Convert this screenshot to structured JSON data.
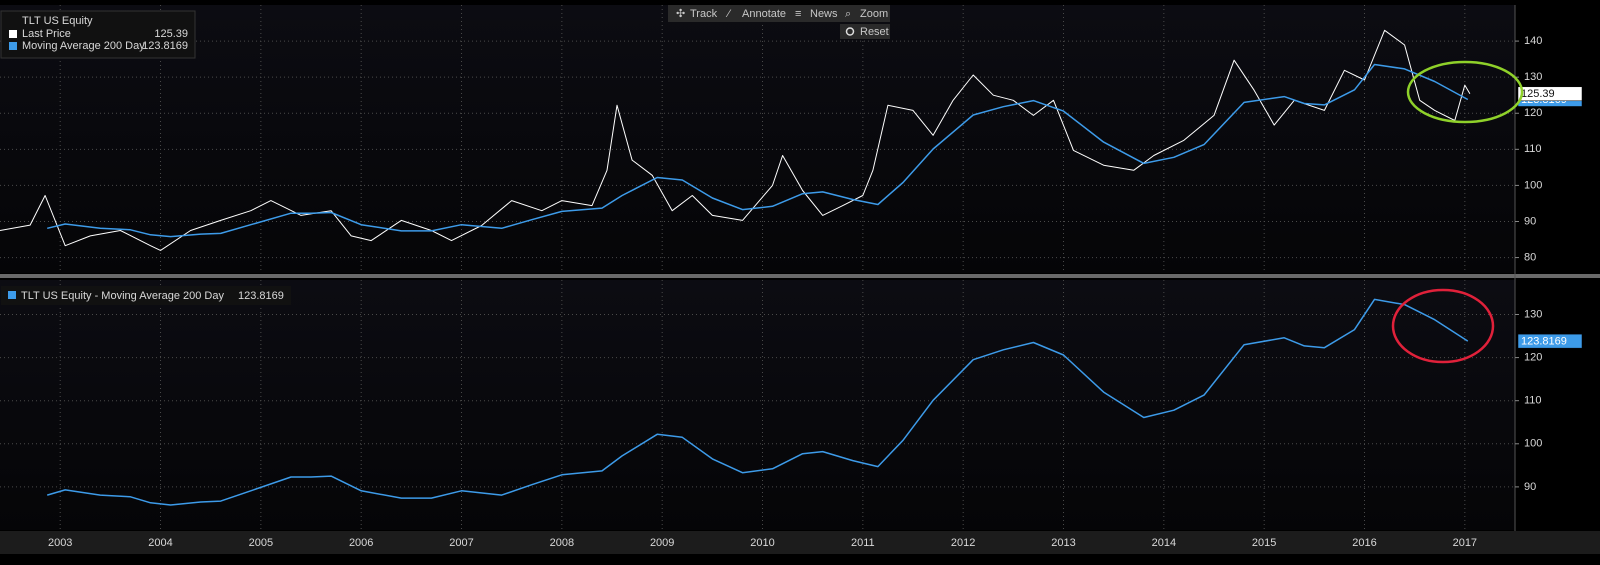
{
  "toolbar": {
    "buttons": [
      "Track",
      "Annotate",
      "News",
      "Zoom"
    ],
    "reset": "Reset"
  },
  "chart_data": [
    {
      "type": "line",
      "title": "TLT US Equity",
      "ylim": [
        76,
        150
      ],
      "yticks": [
        80,
        90,
        100,
        110,
        120,
        130,
        140
      ],
      "grid": true,
      "legend": "top-left",
      "series": [
        {
          "name": "Last Price",
          "color": "#ffffff",
          "x": [
            2002.4,
            2002.7,
            2002.85,
            2003.05,
            2003.3,
            2003.6,
            2003.9,
            2004.0,
            2004.3,
            2004.6,
            2004.9,
            2005.1,
            2005.4,
            2005.7,
            2005.9,
            2006.1,
            2006.4,
            2006.7,
            2006.9,
            2007.2,
            2007.5,
            2007.8,
            2008.0,
            2008.3,
            2008.45,
            2008.55,
            2008.7,
            2008.9,
            2009.1,
            2009.3,
            2009.5,
            2009.8,
            2010.1,
            2010.2,
            2010.4,
            2010.6,
            2010.8,
            2011.0,
            2011.1,
            2011.25,
            2011.5,
            2011.7,
            2011.9,
            2012.1,
            2012.3,
            2012.5,
            2012.7,
            2012.9,
            2013.1,
            2013.4,
            2013.7,
            2013.9,
            2014.2,
            2014.5,
            2014.7,
            2014.9,
            2015.1,
            2015.3,
            2015.6,
            2015.8,
            2016.0,
            2016.2,
            2016.4,
            2016.55,
            2016.7,
            2016.9,
            2017.0,
            2017.05
          ],
          "values": [
            87.5,
            89,
            97.2,
            83.3,
            86,
            87.5,
            83.3,
            82,
            87.5,
            90.3,
            93,
            95.8,
            91.7,
            93,
            86,
            84.7,
            90.3,
            87.5,
            84.7,
            88.9,
            95.8,
            93,
            95.8,
            94.4,
            104.2,
            122.2,
            107,
            102.8,
            93,
            97.2,
            91.7,
            90.3,
            100,
            108.3,
            98.6,
            91.7,
            94.4,
            97.2,
            104.2,
            122.2,
            120.8,
            113.9,
            123.6,
            130.6,
            125,
            123.6,
            119.4,
            123.6,
            109.7,
            105.6,
            104.2,
            108.3,
            112.5,
            119.4,
            134.7,
            126.4,
            116.7,
            123.6,
            120.8,
            131.9,
            129.2,
            143,
            138.9,
            123.6,
            120.8,
            118,
            127.8,
            125.39
          ]
        },
        {
          "name": "Moving Average 200 Day",
          "color": "#3d9be9",
          "x": [
            2002.87,
            2003.05,
            2003.4,
            2003.7,
            2003.9,
            2004.1,
            2004.4,
            2004.6,
            2004.9,
            2005.3,
            2005.5,
            2005.7,
            2006.0,
            2006.4,
            2006.7,
            2007.0,
            2007.4,
            2007.7,
            2008.0,
            2008.4,
            2008.6,
            2008.95,
            2009.2,
            2009.5,
            2009.8,
            2010.1,
            2010.4,
            2010.6,
            2010.9,
            2011.15,
            2011.4,
            2011.7,
            2012.1,
            2012.4,
            2012.7,
            2013.0,
            2013.4,
            2013.8,
            2014.1,
            2014.4,
            2014.8,
            2015.2,
            2015.4,
            2015.6,
            2015.9,
            2016.1,
            2016.4,
            2016.7,
            2017.03
          ],
          "values": [
            88.1,
            89.3,
            88.1,
            87.7,
            86.3,
            85.8,
            86.5,
            86.7,
            89.1,
            92.3,
            92.3,
            92.5,
            89.1,
            87.4,
            87.4,
            89.1,
            88.1,
            90.5,
            92.8,
            93.7,
            97.2,
            102.2,
            101.5,
            96.5,
            93.3,
            94.2,
            97.7,
            98.2,
            96.1,
            94.7,
            100.8,
            110.1,
            119.5,
            121.8,
            123.5,
            120.6,
            112,
            106.1,
            107.8,
            111.3,
            123,
            124.6,
            122.7,
            122.3,
            126.5,
            133.5,
            132.3,
            128.8,
            123.8169
          ]
        }
      ]
    },
    {
      "type": "line",
      "xlim": [
        2002.4,
        2017.5
      ],
      "xticks": [
        2003,
        2004,
        2005,
        2006,
        2007,
        2008,
        2009,
        2010,
        2011,
        2012,
        2013,
        2014,
        2015,
        2016,
        2017
      ],
      "ylim": [
        80,
        138
      ],
      "yticks": [
        90,
        100,
        110,
        120,
        130
      ],
      "grid": true,
      "legend": "top-left",
      "series": [
        {
          "name": "TLT US Equity - Moving Average 200 Day",
          "color": "#3d9be9",
          "x": [
            2002.87,
            2003.05,
            2003.4,
            2003.7,
            2003.9,
            2004.1,
            2004.4,
            2004.6,
            2004.9,
            2005.3,
            2005.5,
            2005.7,
            2006.0,
            2006.4,
            2006.7,
            2007.0,
            2007.4,
            2007.7,
            2008.0,
            2008.4,
            2008.6,
            2008.95,
            2009.2,
            2009.5,
            2009.8,
            2010.1,
            2010.4,
            2010.6,
            2010.9,
            2011.15,
            2011.4,
            2011.7,
            2012.1,
            2012.4,
            2012.7,
            2013.0,
            2013.4,
            2013.8,
            2014.1,
            2014.4,
            2014.8,
            2015.2,
            2015.4,
            2015.6,
            2015.9,
            2016.1,
            2016.4,
            2016.7,
            2017.03
          ],
          "values": [
            88.1,
            89.3,
            88.1,
            87.7,
            86.3,
            85.8,
            86.5,
            86.7,
            89.1,
            92.3,
            92.3,
            92.5,
            89.1,
            87.4,
            87.4,
            89.1,
            88.1,
            90.5,
            92.8,
            93.7,
            97.2,
            102.2,
            101.5,
            96.5,
            93.3,
            94.2,
            97.7,
            98.2,
            96.1,
            94.7,
            100.8,
            110.1,
            119.5,
            121.8,
            123.5,
            120.6,
            112,
            106.1,
            107.8,
            111.3,
            123,
            124.6,
            122.7,
            122.3,
            126.5,
            133.5,
            132.3,
            128.8,
            123.8169
          ]
        }
      ]
    }
  ]
}
